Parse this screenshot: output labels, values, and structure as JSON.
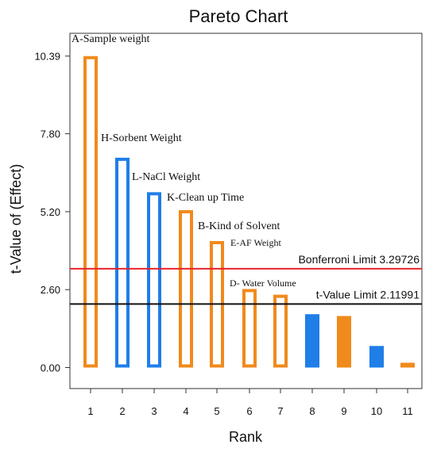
{
  "chart_data": {
    "type": "bar",
    "title": "Pareto Chart",
    "xlabel": "Rank",
    "ylabel": "t-Value of (Effect)",
    "ylim": [
      0,
      11.15
    ],
    "yticks": [
      "0.00",
      "2.60",
      "5.20",
      "7.80",
      "10.39"
    ],
    "ytick_values": [
      0,
      2.6,
      5.2,
      7.8,
      10.39
    ],
    "categories": [
      "1",
      "2",
      "3",
      "4",
      "5",
      "6",
      "7",
      "8",
      "9",
      "10",
      "11"
    ],
    "grid": false,
    "bars": [
      {
        "rank": 1,
        "value": 10.39,
        "label": "A-Sample weight",
        "fill": "hollow",
        "color": "#f08a1c"
      },
      {
        "rank": 2,
        "value": 7.0,
        "label": "H-Sorbent Weight",
        "fill": "hollow",
        "color": "#1f7ee8"
      },
      {
        "rank": 3,
        "value": 5.85,
        "label": "L-NaCl Weight",
        "fill": "hollow",
        "color": "#1f7ee8"
      },
      {
        "rank": 4,
        "value": 5.25,
        "label": "K-Clean up Time",
        "fill": "hollow",
        "color": "#f08a1c"
      },
      {
        "rank": 5,
        "value": 4.22,
        "label": "B-Kind of Solvent",
        "fill": "hollow",
        "color": "#f08a1c"
      },
      {
        "rank": 6,
        "value": 2.62,
        "label": "E-AF Weight",
        "fill": "hollow",
        "color": "#f08a1c"
      },
      {
        "rank": 7,
        "value": 2.43,
        "label": "D- Water Volume",
        "fill": "hollow",
        "color": "#f08a1c"
      },
      {
        "rank": 8,
        "value": 1.78,
        "label": "",
        "fill": "solid",
        "color": "#1f7ee8"
      },
      {
        "rank": 9,
        "value": 1.72,
        "label": "",
        "fill": "solid",
        "color": "#f08a1c"
      },
      {
        "rank": 10,
        "value": 0.72,
        "label": "",
        "fill": "solid",
        "color": "#1f7ee8"
      },
      {
        "rank": 11,
        "value": 0.16,
        "label": "",
        "fill": "solid",
        "color": "#f08a1c"
      }
    ],
    "reference_lines": [
      {
        "name": "Bonferroni Limit 3.29726",
        "value": 3.29726,
        "color": "#e8232a"
      },
      {
        "name": "t-Value Limit 2.11991",
        "value": 2.11991,
        "color": "#111111"
      }
    ]
  }
}
